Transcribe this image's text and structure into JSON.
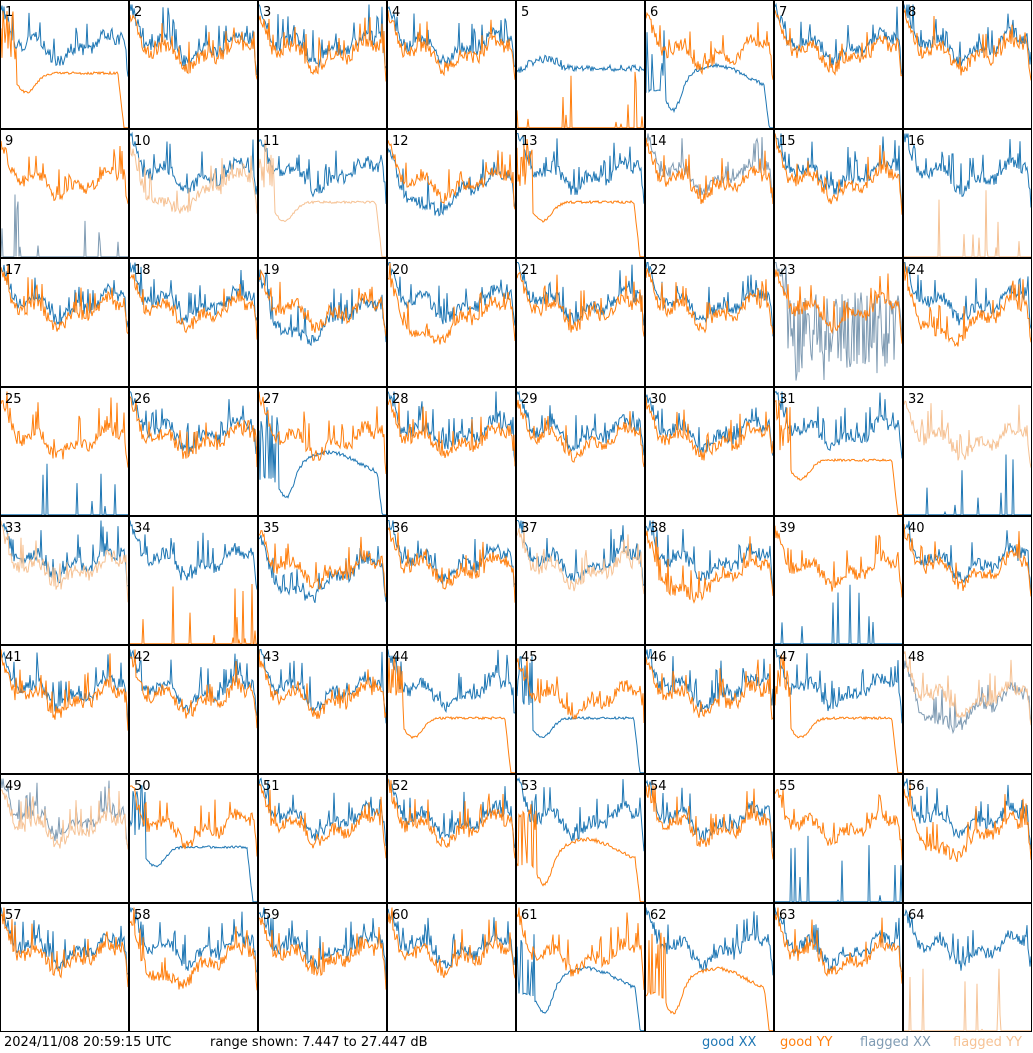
{
  "chart_data": {
    "type": "line",
    "panel_labels": [
      "1",
      "2",
      "3",
      "4",
      "5",
      "6",
      "7",
      "8",
      "9",
      "10",
      "11",
      "12",
      "13",
      "14",
      "15",
      "16",
      "17",
      "18",
      "19",
      "20",
      "21",
      "22",
      "23",
      "24",
      "25",
      "26",
      "27",
      "28",
      "29",
      "30",
      "31",
      "32",
      "33",
      "34",
      "35",
      "36",
      "37",
      "38",
      "39",
      "40",
      "41",
      "42",
      "43",
      "44",
      "45",
      "46",
      "47",
      "48",
      "49",
      "50",
      "51",
      "52",
      "53",
      "54",
      "55",
      "56",
      "57",
      "58",
      "59",
      "60",
      "61",
      "62",
      "63",
      "64"
    ],
    "ylim_db": [
      7.447,
      27.447
    ],
    "series_colors": {
      "good_xx": "#1f77b4",
      "good_yy": "#ff7f0e",
      "flagged_xx": "#7f9bb3",
      "flagged_yy": "#f6c294"
    },
    "panel_states": {
      "1": {
        "xx": "good",
        "yy": "good",
        "yy_shape": "dip_cutoff"
      },
      "5": {
        "xx": "good",
        "yy": "good",
        "yy_shape": "spikes_low",
        "xx_shape": "hump"
      },
      "6": {
        "xx": "good",
        "yy": "good",
        "xx_shape": "deep_dip"
      },
      "9": {
        "xx": "flagged",
        "yy": "good",
        "xx_shape": "spikes_low"
      },
      "10": {
        "xx": "good",
        "yy": "flagged",
        "yy_shape": "dip"
      },
      "11": {
        "xx": "good",
        "yy": "flagged",
        "yy_shape": "dip_cutoff"
      },
      "12": {
        "xx": "good",
        "yy": "good",
        "xx_shape": "dip"
      },
      "13": {
        "xx": "good",
        "yy": "good",
        "yy_shape": "dip_cutoff"
      },
      "14": {
        "xx": "flagged",
        "yy": "good"
      },
      "16": {
        "xx": "good",
        "yy": "flagged",
        "yy_shape": "spikes_low"
      },
      "19": {
        "xx": "good",
        "yy": "good",
        "xx_shape": "dip"
      },
      "20": {
        "xx": "good",
        "yy": "good",
        "yy_shape": "dip"
      },
      "23": {
        "xx": "flagged",
        "yy": "good",
        "xx_shape": "noise_low"
      },
      "24": {
        "xx": "good",
        "yy": "good",
        "yy_shape": "dip"
      },
      "25": {
        "xx": "good",
        "yy": "good",
        "xx_shape": "spikes_low"
      },
      "27": {
        "xx": "good",
        "yy": "good",
        "xx_shape": "deep_dip"
      },
      "31": {
        "xx": "good",
        "yy": "good",
        "yy_shape": "dip_cutoff"
      },
      "32": {
        "xx": "good",
        "yy": "flagged",
        "xx_shape": "spikes_low"
      },
      "33": {
        "xx": "good",
        "yy": "flagged"
      },
      "34": {
        "xx": "good",
        "yy": "good",
        "yy_shape": "spikes_low"
      },
      "35": {
        "xx": "good",
        "yy": "good",
        "xx_shape": "dip"
      },
      "37": {
        "xx": "good",
        "yy": "flagged"
      },
      "38": {
        "xx": "good",
        "yy": "good",
        "yy_shape": "dip"
      },
      "39": {
        "xx": "good",
        "yy": "good",
        "xx_shape": "spikes_low"
      },
      "44": {
        "xx": "good",
        "yy": "good",
        "yy_shape": "dip_cutoff"
      },
      "45": {
        "xx": "good",
        "yy": "good",
        "xx_shape": "dip_cutoff"
      },
      "47": {
        "xx": "good",
        "yy": "good",
        "yy_shape": "dip_cutoff"
      },
      "48": {
        "xx": "flagged",
        "yy": "flagged",
        "xx_shape": "dip"
      },
      "49": {
        "xx": "flagged",
        "yy": "flagged"
      },
      "50": {
        "xx": "good",
        "yy": "good",
        "xx_shape": "dip_cutoff"
      },
      "53": {
        "xx": "good",
        "yy": "good",
        "yy_shape": "deep_dip"
      },
      "55": {
        "xx": "good",
        "yy": "good",
        "xx_shape": "spikes_low"
      },
      "56": {
        "xx": "good",
        "yy": "good",
        "yy_shape": "dip"
      },
      "58": {
        "xx": "good",
        "yy": "good",
        "yy_shape": "dip"
      },
      "61": {
        "xx": "good",
        "yy": "good",
        "xx_shape": "deep_dip"
      },
      "62": {
        "xx": "good",
        "yy": "good",
        "yy_shape": "deep_dip"
      },
      "64": {
        "xx": "good",
        "yy": "flagged",
        "yy_shape": "spikes_low"
      }
    }
  },
  "footer": {
    "timestamp": "2024/11/08 20:59:15 UTC",
    "range": "range shown: 7.447 to 27.447 dB",
    "legend": {
      "good_xx": {
        "word": "good",
        "pol": "XX"
      },
      "good_yy": {
        "word": "good",
        "pol": "YY"
      },
      "flagged_xx": {
        "word": "flagged",
        "pol": "XX"
      },
      "flagged_yy": {
        "word": "flagged",
        "pol": "YY"
      }
    }
  }
}
